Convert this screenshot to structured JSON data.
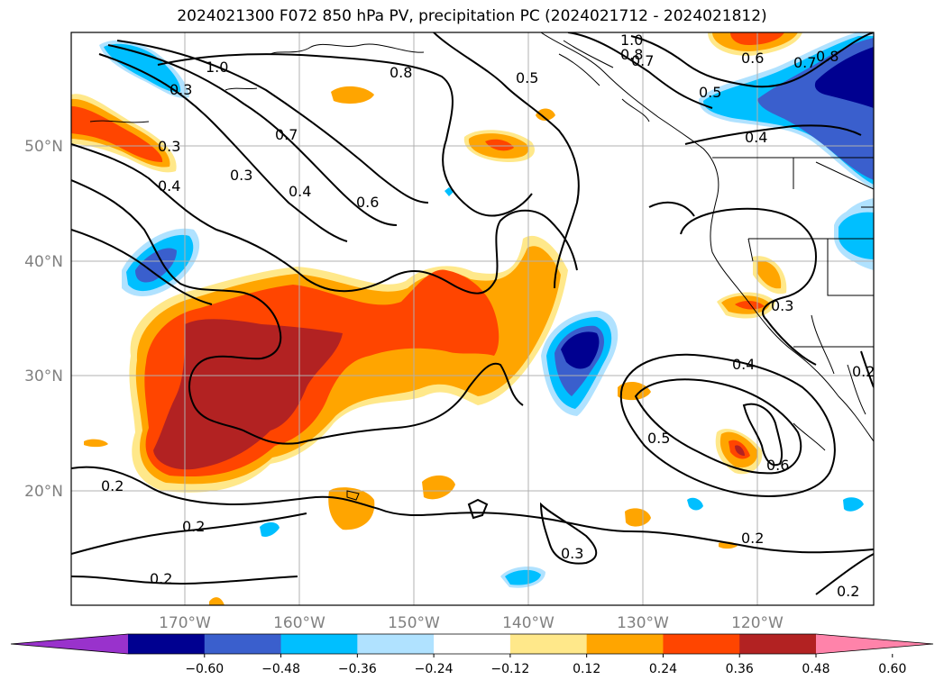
{
  "title": "2024021300 F072 850 hPa PV, precipitation PC (2024021712 - 2024021812)",
  "latitude_labels": [
    "50°N",
    "40°N",
    "30°N",
    "20°N"
  ],
  "longitude_labels": [
    "170°W",
    "160°W",
    "150°W",
    "140°W",
    "130°W",
    "120°W"
  ],
  "colorbar": {
    "tick_labels": [
      "−0.60",
      "−0.48",
      "−0.36",
      "−0.24",
      "−0.12",
      "0.12",
      "0.24",
      "0.36",
      "0.48",
      "0.60"
    ],
    "colors": [
      "#9932cc",
      "#000090",
      "#3a5fcd",
      "#00bfff",
      "#b0e2ff",
      "#ffffff",
      "#ffe88a",
      "#ffa500",
      "#ff4500",
      "#b22222",
      "#ff83aa"
    ]
  },
  "contour_labels": [
    "1.0",
    "0.8",
    "0.5",
    "1.0",
    "0.8",
    "0.7",
    "0.6",
    "0.7",
    "0.8",
    "0.5",
    "0.3",
    "0.7",
    "0.3",
    "0.4",
    "0.4",
    "0.3",
    "0.4",
    "0.6",
    "0.3",
    "0.4",
    "0.5",
    "0.6",
    "0.2",
    "0.2",
    "0.2",
    "0.2",
    "0.3",
    "0.2",
    "0.2"
  ]
}
